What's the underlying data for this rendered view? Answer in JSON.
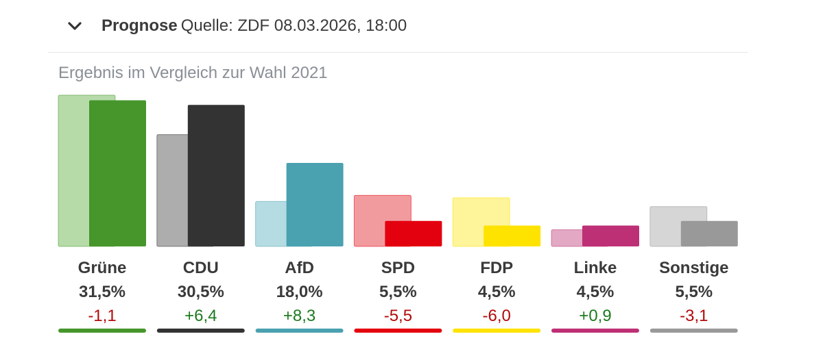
{
  "header": {
    "title": "Prognose",
    "source": "Quelle: ZDF 08.03.2026, 18:00",
    "chevron_icon": "chevron-down-icon"
  },
  "chart_data": {
    "type": "bar",
    "title": "Ergebnis im Vergleich zur Wahl 2021",
    "categories": [
      "Grüne",
      "CDU",
      "AfD",
      "SPD",
      "FDP",
      "Linke",
      "Sonstige"
    ],
    "series": [
      {
        "name": "Wahl 2021",
        "values": [
          32.6,
          24.1,
          9.7,
          11.0,
          10.5,
          3.6,
          8.6
        ]
      },
      {
        "name": "Prognose",
        "values": [
          31.5,
          30.5,
          18.0,
          5.5,
          4.5,
          4.5,
          5.5
        ]
      }
    ],
    "value_labels": [
      "31,5%",
      "30,5%",
      "18,0%",
      "5,5%",
      "4,5%",
      "4,5%",
      "5,5%"
    ],
    "diff_labels": [
      "-1,1",
      "+6,4",
      "+8,3",
      "-5,5",
      "-6,0",
      "+0,9",
      "-3,1"
    ],
    "ylim": [
      0,
      32.6
    ],
    "colors": {
      "current": [
        "#46962b",
        "#333333",
        "#4aa1b0",
        "#e3000f",
        "#ffe300",
        "#be3075",
        "#999999"
      ],
      "previous": [
        "#b6dba9",
        "#adadad",
        "#b5dce2",
        "#f29b9f",
        "#fef49a",
        "#e3a9c4",
        "#d6d6d6"
      ],
      "positive": "#1d7a1d",
      "negative": "#b20a0a"
    }
  }
}
